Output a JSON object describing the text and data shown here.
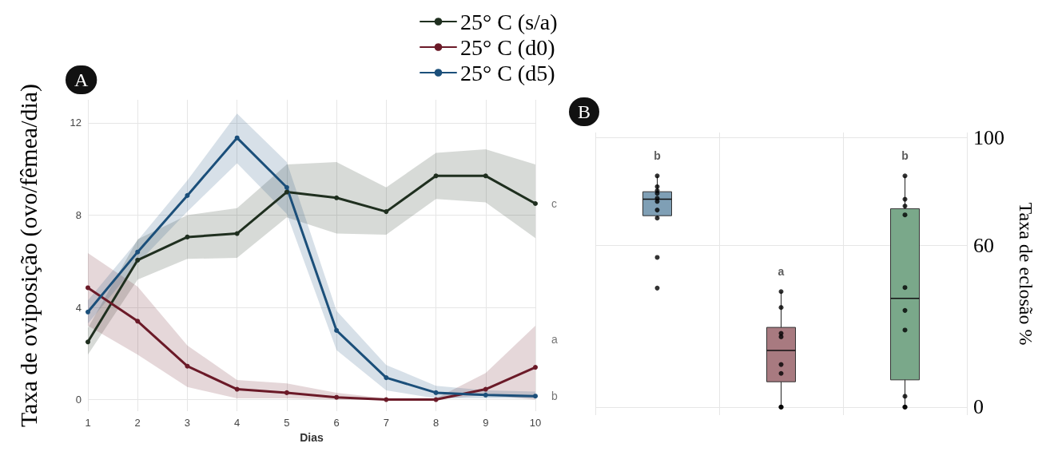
{
  "chart_data": [
    {
      "type": "line",
      "title": "A",
      "xlabel": "Dias",
      "ylabel": "Taxa de oviposição (ovo/fêmea/dia)",
      "categories": [
        "1",
        "2",
        "3",
        "4",
        "5",
        "6",
        "7",
        "8",
        "9",
        "10"
      ],
      "ylim": [
        -0.5,
        13
      ],
      "yticks": [
        0,
        4,
        8,
        12
      ],
      "grid": true,
      "legend": "top",
      "marker": "circle",
      "line_style": "solid",
      "series": [
        {
          "name": "25° C (s/a)",
          "color": "#1f2f1f",
          "values": [
            2.5,
            6.05,
            7.05,
            7.2,
            9.0,
            8.75,
            8.15,
            9.7,
            9.7,
            8.5
          ],
          "lower": [
            1.95,
            5.2,
            6.1,
            6.15,
            7.9,
            7.2,
            7.15,
            8.7,
            8.55,
            7.0
          ],
          "upper": [
            3.1,
            6.95,
            8.0,
            8.3,
            10.2,
            10.3,
            9.2,
            10.7,
            10.85,
            10.2
          ]
        },
        {
          "name": "25° C (d0)",
          "color": "#6b1a28",
          "values": [
            4.85,
            3.4,
            1.45,
            0.45,
            0.3,
            0.1,
            0,
            0,
            0.45,
            1.4
          ],
          "lower": [
            3.2,
            1.95,
            0.55,
            0.05,
            0.05,
            0,
            0,
            0,
            0.2,
            0
          ],
          "upper": [
            6.35,
            4.9,
            2.35,
            0.85,
            0.7,
            0.3,
            0.05,
            0.05,
            1.15,
            3.2
          ]
        },
        {
          "name": "25° C (d5)",
          "color": "#1b4f7a",
          "values": [
            3.8,
            6.4,
            8.85,
            11.35,
            9.2,
            3.0,
            0.95,
            0.3,
            0.2,
            0.15
          ],
          "lower": [
            3.3,
            5.9,
            8.15,
            10.25,
            8.05,
            2.15,
            0.4,
            0.05,
            0.05,
            0.05
          ],
          "upper": [
            4.3,
            6.9,
            9.5,
            12.4,
            10.3,
            3.85,
            1.5,
            0.6,
            0.4,
            0.35
          ]
        }
      ],
      "annotations": [
        {
          "text": "c",
          "x": "10",
          "y": 8.5
        },
        {
          "text": "a",
          "x": "10",
          "y": 2.6
        },
        {
          "text": "b",
          "x": "10",
          "y": 0.15
        }
      ]
    },
    {
      "type": "box",
      "title": "B",
      "ylabel": "Taxa de eclosão %",
      "categories": [
        null,
        null,
        null
      ],
      "ylim": [
        -3,
        102
      ],
      "yticks": [
        0,
        60,
        100
      ],
      "grid": true,
      "colors": [
        "#7f9fb5",
        "#a87a80",
        "#7aa88a"
      ],
      "boxes": [
        {
          "low": 70.4,
          "q1": 71.1,
          "median": 77.2,
          "q3": 80.0,
          "high": 85.9,
          "outliers": [
            85.9,
            80.4,
            81.9,
            79.4,
            77.6,
            76.4,
            73.2,
            70.2,
            55.6,
            44.2
          ]
        },
        {
          "low": 0,
          "q1": 9.4,
          "median": 21.0,
          "q3": 29.6,
          "high": 42.9,
          "outliers": [
            42.9,
            37.0,
            27.4,
            26.1,
            15.8,
            12.5,
            0,
            0
          ]
        },
        {
          "low": 0,
          "q1": 10.1,
          "median": 40.4,
          "q3": 73.7,
          "high": 85.9,
          "outliers": [
            85.9,
            77.2,
            74.7,
            71.4,
            44.4,
            35.9,
            28.6,
            4.0,
            0,
            0
          ]
        }
      ],
      "annotations": [
        "b",
        "a",
        "b"
      ]
    }
  ]
}
